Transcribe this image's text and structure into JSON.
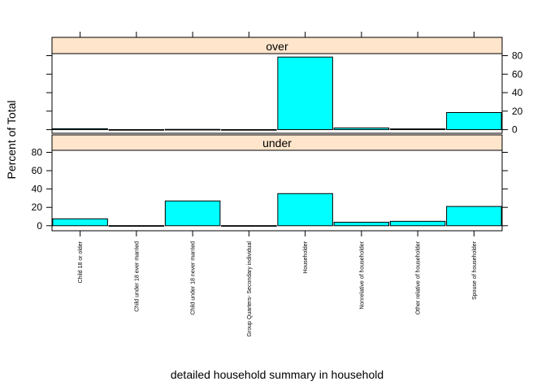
{
  "chart_data": {
    "type": "bar",
    "ylabel": "Percent of Total",
    "xlabel": "detailed household summary in household",
    "categories": [
      "Child 18 or older",
      "Child under 18 ever married",
      "Child under 18 never married",
      "Group Quarters- Secondary individual",
      "Householder",
      "Nonrelative of householder",
      "Other relative of householder",
      "Spouse of householder"
    ],
    "yticks": [
      0,
      20,
      40,
      60,
      80
    ],
    "panels": [
      {
        "name": "over",
        "values": [
          1.0,
          0.1,
          0.3,
          0.1,
          78.5,
          1.8,
          0.8,
          18.5
        ],
        "ylim": [
          -3.9,
          82.2
        ],
        "tick_side": "right"
      },
      {
        "name": "under",
        "values": [
          7.5,
          0.1,
          27.0,
          0.1,
          35.0,
          3.8,
          4.8,
          21.0
        ],
        "ylim": [
          -5.5,
          82.2
        ],
        "tick_side": "left"
      }
    ],
    "colors": {
      "bar_fill": "#00FFFF",
      "strip_fill": "#FFE5CC",
      "frame": "#000000"
    },
    "grid": false,
    "legend": "none"
  }
}
